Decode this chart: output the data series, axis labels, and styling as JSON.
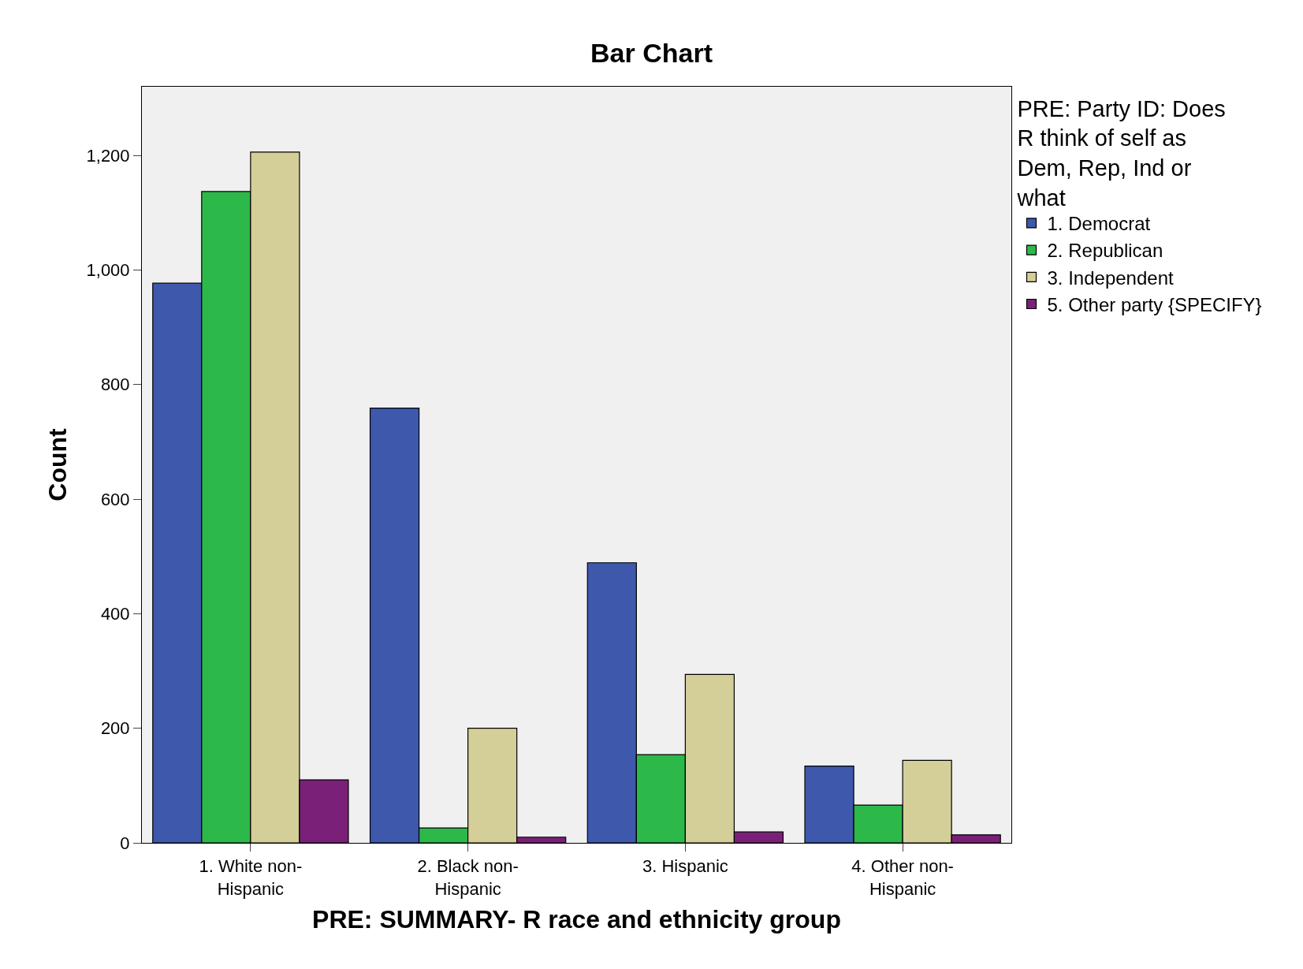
{
  "chart_data": {
    "type": "bar",
    "title": "Bar Chart",
    "xlabel": "PRE: SUMMARY- R race and ethnicity group",
    "ylabel": "Count",
    "legend_title": "PRE: Party ID: Does\nR think of self as\nDem, Rep, Ind or\nwhat",
    "categories": [
      "1. White non-\nHispanic",
      "2. Black non-\nHispanic",
      "3. Hispanic",
      "4. Other non-\nHispanic"
    ],
    "series": [
      {
        "name": "1. Democrat",
        "color": "#3e58ac",
        "values": [
          977,
          759,
          489,
          134
        ]
      },
      {
        "name": "2. Republican",
        "color": "#2db84a",
        "values": [
          1137,
          26,
          154,
          66
        ]
      },
      {
        "name": "3. Independent",
        "color": "#d4cf98",
        "values": [
          1206,
          200,
          294,
          144
        ]
      },
      {
        "name": "5. Other party {SPECIFY}",
        "color": "#7b2078",
        "values": [
          110,
          10,
          19,
          14
        ]
      }
    ],
    "ylim": [
      0,
      1320
    ],
    "yticks": [
      0,
      200,
      400,
      600,
      800,
      {
        "value": 1000,
        "label": "1,000"
      },
      {
        "value": 1200,
        "label": "1,200"
      }
    ],
    "grid": false,
    "legend": "top right"
  }
}
